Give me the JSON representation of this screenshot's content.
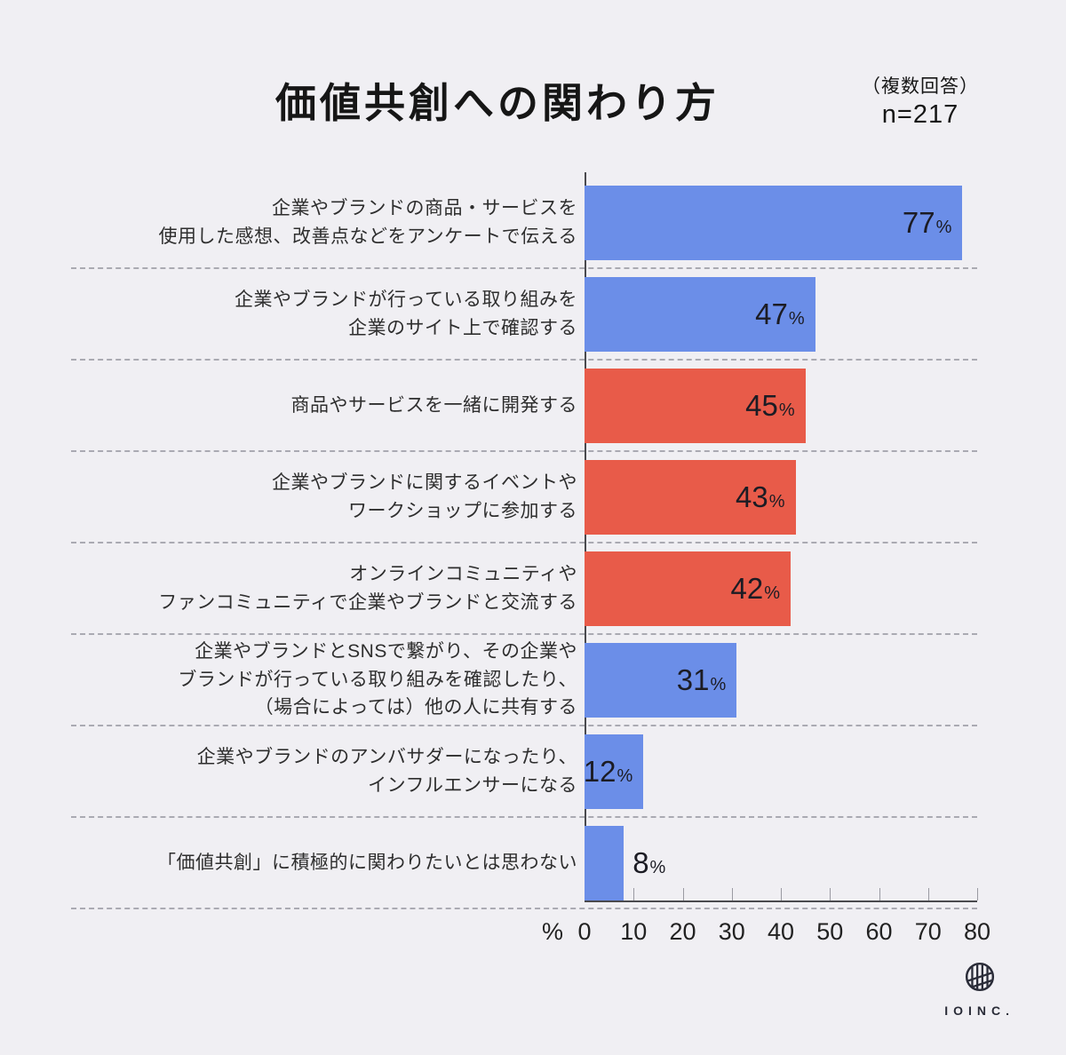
{
  "title": "価値共創への関わり方",
  "annotation": {
    "note": "（複数回答）",
    "sample": "n=217"
  },
  "chart_data": {
    "type": "bar",
    "orientation": "horizontal",
    "title": "価値共創への関わり方",
    "subtitle": "（複数回答） n=217",
    "unit": "%",
    "axis_unit_label": "%",
    "xlim": [
      0,
      80
    ],
    "axis_ticks": [
      0,
      10,
      20,
      30,
      40,
      50,
      60,
      70,
      80
    ],
    "grid": "dashed-row-separators",
    "categories": [
      [
        "企業やブランドの商品・サービスを",
        "使用した感想、改善点などをアンケートで伝える"
      ],
      [
        "企業やブランドが行っている取り組みを",
        "企業のサイト上で確認する"
      ],
      [
        "商品やサービスを一緒に開発する"
      ],
      [
        "企業やブランドに関するイベントや",
        "ワークショップに参加する"
      ],
      [
        "オンラインコミュニティや",
        "ファンコミュニティで企業やブランドと交流する"
      ],
      [
        "企業やブランドとSNSで繋がり、その企業や",
        "ブランドが行っている取り組みを確認したり、",
        "（場合によっては）他の人に共有する"
      ],
      [
        "企業やブランドのアンバサダーになったり、",
        "インフルエンサーになる"
      ],
      [
        "「価値共創」に積極的に関わりたいとは思わない"
      ]
    ],
    "values": [
      77,
      47,
      45,
      43,
      42,
      31,
      12,
      8
    ],
    "bar_colors": [
      "blue",
      "blue",
      "red",
      "red",
      "red",
      "blue",
      "blue",
      "blue"
    ],
    "palette": {
      "blue": "#6B8EE8",
      "red": "#E85B49"
    },
    "label_inside": [
      true,
      true,
      true,
      true,
      true,
      true,
      true,
      false
    ]
  },
  "logo": {
    "text": "IOINC."
  }
}
